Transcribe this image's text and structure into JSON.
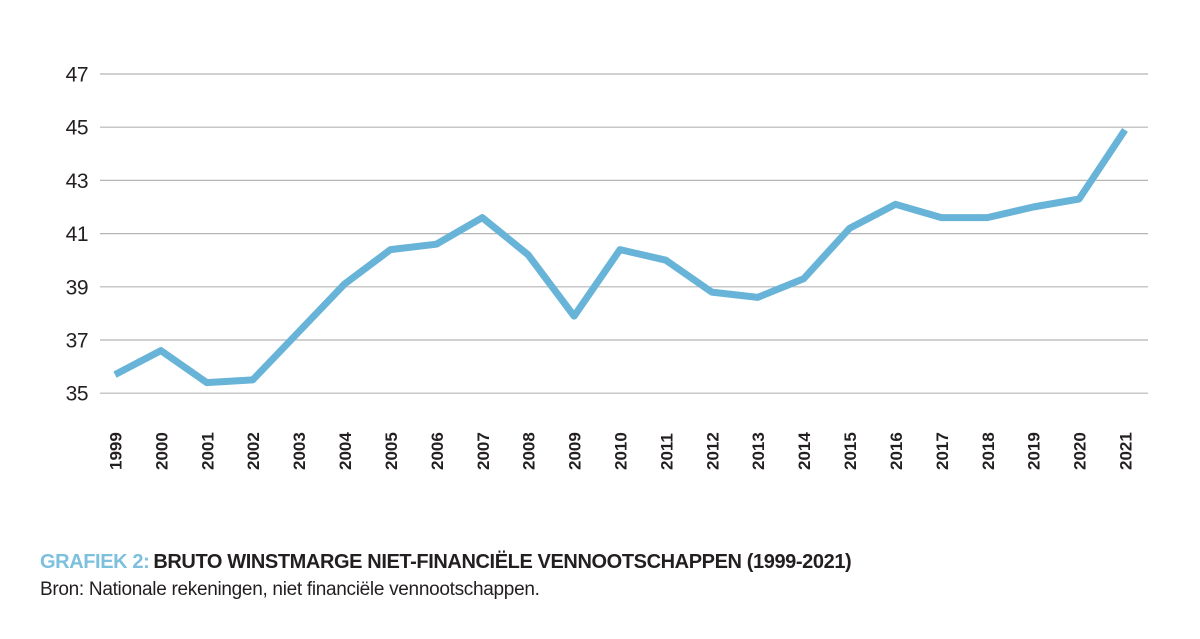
{
  "page": {
    "background": "#ffffff"
  },
  "chart_data": {
    "type": "line",
    "caption_prefix": "GRAFIEK 2:",
    "title": "BRUTO WINSTMARGE NIET-FINANCIËLE VENNOOTSCHAPPEN (1999-2021)",
    "source": "Bron: Nationale rekeningen, niet financiële vennootschappen.",
    "x": [
      1999,
      2000,
      2001,
      2002,
      2003,
      2004,
      2005,
      2006,
      2007,
      2008,
      2009,
      2010,
      2011,
      2012,
      2013,
      2014,
      2015,
      2016,
      2017,
      2018,
      2019,
      2020,
      2021
    ],
    "values": [
      35.7,
      36.6,
      35.4,
      35.5,
      37.3,
      39.1,
      40.4,
      40.6,
      41.6,
      40.2,
      37.9,
      40.4,
      40.0,
      38.8,
      38.6,
      39.3,
      41.2,
      42.1,
      41.6,
      41.6,
      42.0,
      42.3,
      44.9
    ],
    "ylim": [
      35,
      47
    ],
    "yticks": [
      35,
      37,
      39,
      41,
      43,
      45,
      47
    ],
    "grid": "horizontal",
    "legend": "none",
    "line_color": "#68b4d8",
    "gridline_color": "#b5b5b5",
    "text_color": "#231f20",
    "accent_color": "#7cc0dd"
  }
}
